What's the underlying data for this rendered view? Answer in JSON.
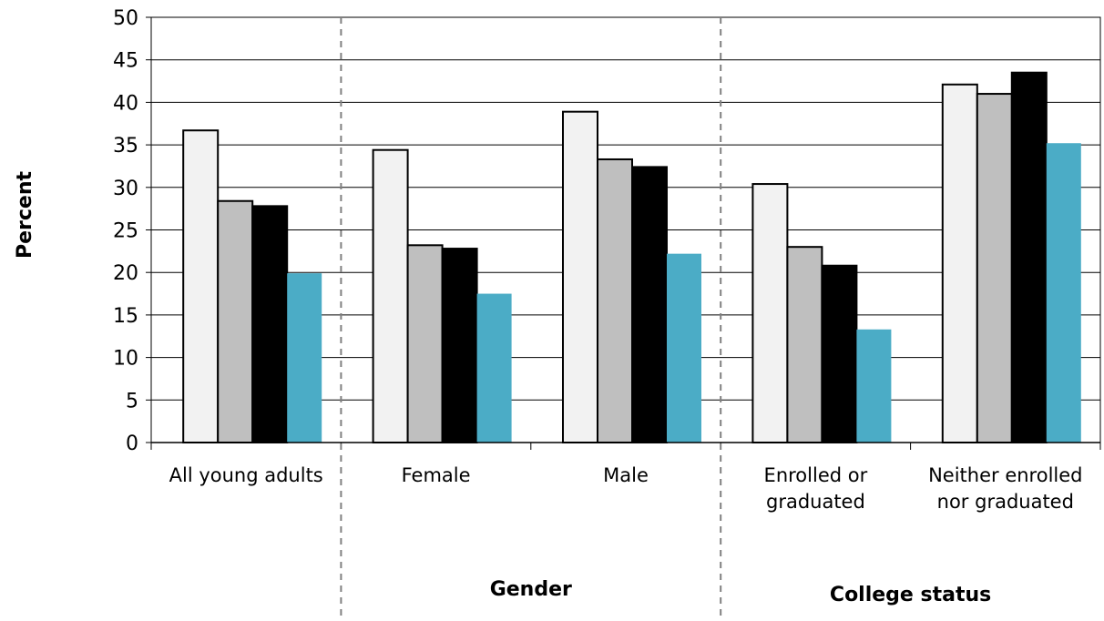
{
  "chart_data": {
    "type": "bar",
    "ylabel": "Percent",
    "xlabel": "",
    "ylim": [
      0,
      50
    ],
    "ytick_step": 5,
    "grid": true,
    "legend": "none",
    "categories": [
      [
        "All young adults"
      ],
      [
        "Female"
      ],
      [
        "Male"
      ],
      [
        "Enrolled or",
        "graduated"
      ],
      [
        "Neither enrolled",
        "nor graduated"
      ]
    ],
    "groups": [
      {
        "label": "Gender",
        "categories": [
          1,
          2
        ]
      },
      {
        "label": "College status",
        "categories": [
          3,
          4
        ]
      }
    ],
    "series": [
      {
        "color": "#f2f2f2",
        "outline": true,
        "values": [
          36.7,
          34.4,
          38.9,
          30.4,
          42.1
        ]
      },
      {
        "color": "#bfbfbf",
        "outline": true,
        "values": [
          28.4,
          23.2,
          33.3,
          23.0,
          41.0
        ]
      },
      {
        "color": "#000000",
        "outline": true,
        "values": [
          27.8,
          22.8,
          32.4,
          20.8,
          43.5
        ]
      },
      {
        "color": "#4bacc6",
        "outline": false,
        "values": [
          19.9,
          17.5,
          22.2,
          13.3,
          35.2
        ]
      }
    ]
  }
}
